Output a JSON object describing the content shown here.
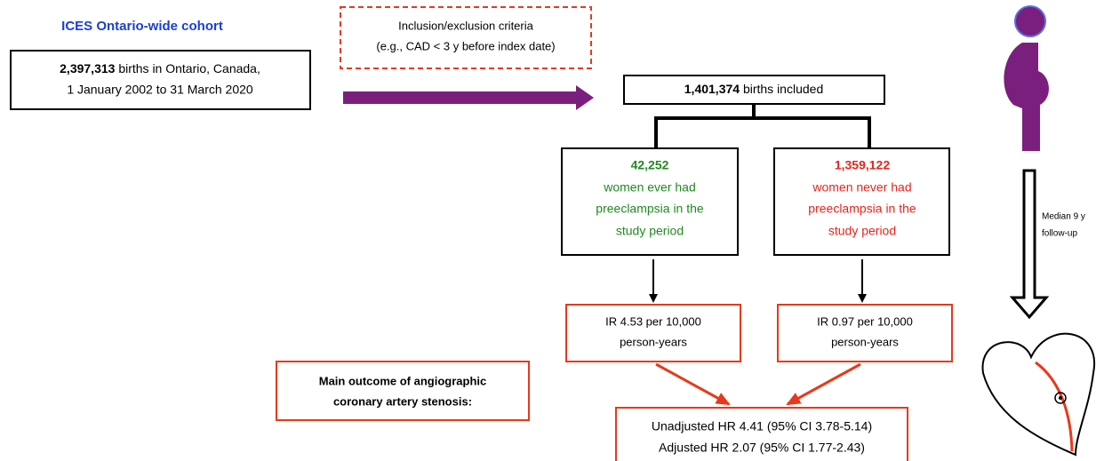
{
  "cohort_label": "ICES Ontario-wide cohort",
  "source_box": {
    "count": "2,397,313",
    "line1_rest": " births in Ontario, Canada,",
    "line2": "1 January 2002 to 31 March 2020"
  },
  "criteria_box": {
    "lines": [
      "Inclusion/exclusion criteria",
      "(e.g., CAD < 3 y before index date)"
    ]
  },
  "included_box": {
    "count": "1,401,374",
    "rest": " births included"
  },
  "groups": [
    {
      "count": "42,252",
      "lines": [
        "women ever had",
        "preeclampsia in the",
        "study period"
      ],
      "ir_lines": [
        "IR 4.53 per 10,000",
        "person-years"
      ]
    },
    {
      "count": "1,359,122",
      "lines": [
        "women never had",
        "preeclampsia in the",
        "study period"
      ],
      "ir_lines": [
        "IR 0.97 per 10,000",
        "person-years"
      ]
    }
  ],
  "outcome_label": {
    "lines": [
      "Main outcome of angiographic",
      "coronary artery stenosis:"
    ]
  },
  "result_box": {
    "lines": [
      "Unadjusted HR 4.41 (95% CI 3.78-5.14)",
      "Adjusted HR 2.07 (95% CI 1.77-2.43)"
    ]
  },
  "followup": {
    "lines": [
      "Median 9 y",
      "follow-up"
    ]
  }
}
